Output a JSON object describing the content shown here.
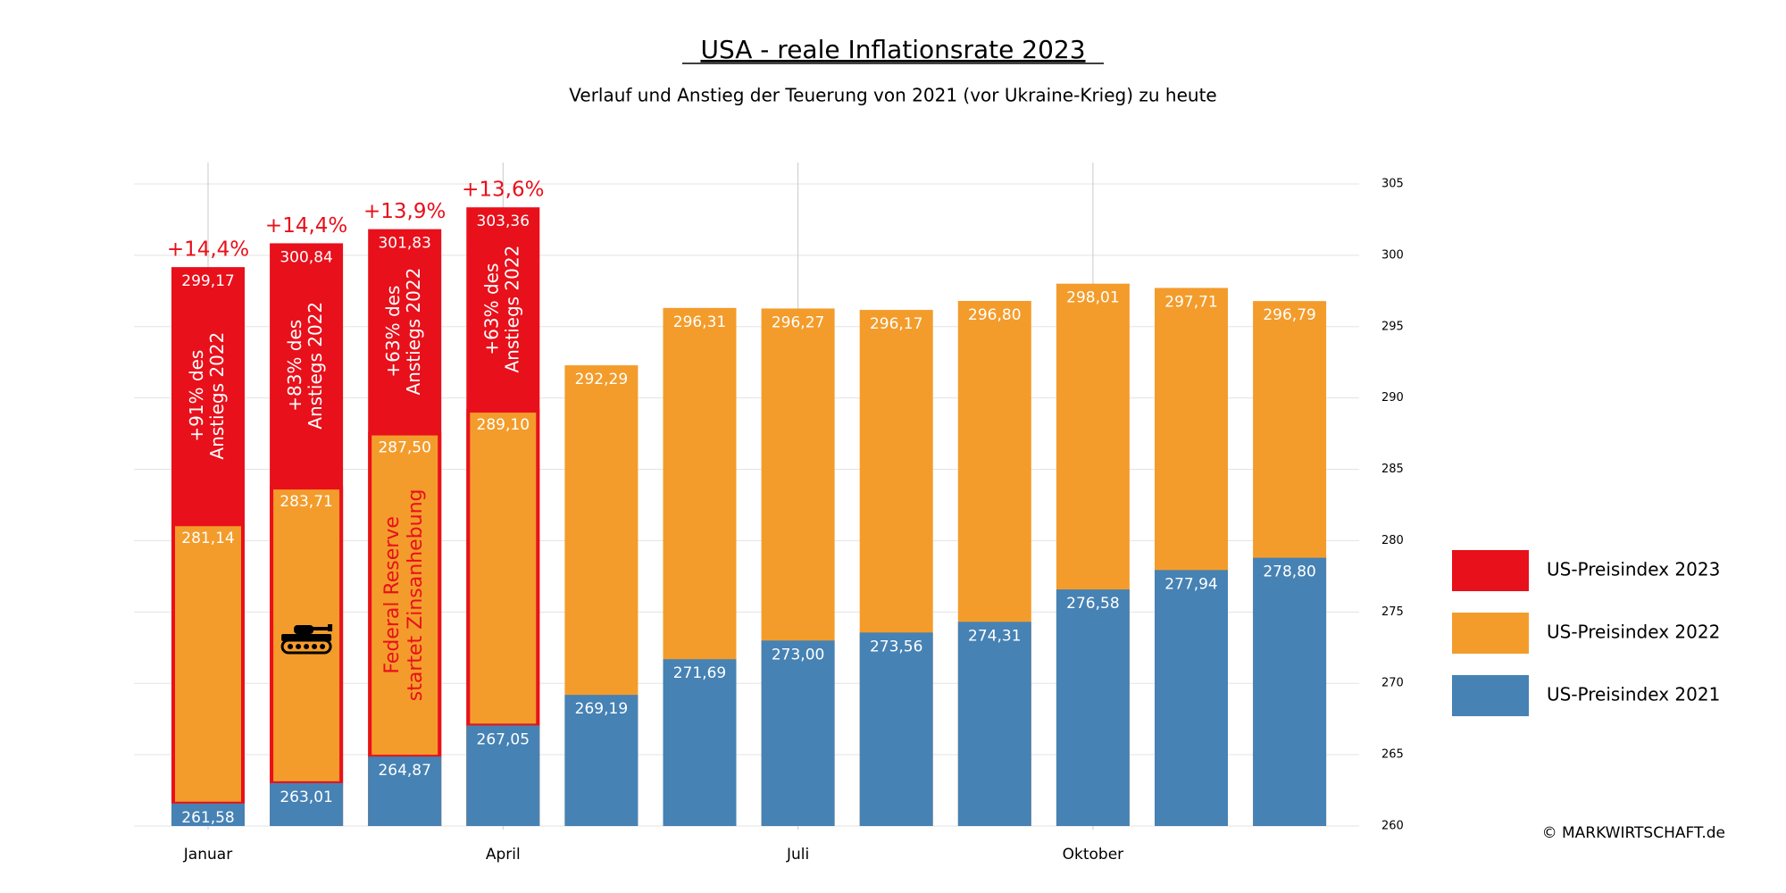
{
  "chart_data": {
    "type": "bar",
    "title": "USA - reale Inflationsrate 2023",
    "subtitle": "Verlauf und Anstieg der Teuerung von 2021 (vor Ukraine-Krieg) zu heute",
    "categories": [
      "Januar",
      null,
      null,
      "April",
      null,
      null,
      "Juli",
      null,
      null,
      "Oktober",
      null,
      null
    ],
    "series": [
      {
        "name": "US-Preisindex 2023",
        "color": "#e8101b",
        "values": [
          299.17,
          300.84,
          301.83,
          303.36,
          null,
          null,
          null,
          null,
          null,
          null,
          null,
          null
        ],
        "value_labels": [
          "299,17",
          "300,84",
          "301,83",
          "303,36",
          null,
          null,
          null,
          null,
          null,
          null,
          null,
          null
        ]
      },
      {
        "name": "US-Preisindex 2022",
        "color": "#f39c2b",
        "values": [
          281.14,
          283.71,
          287.5,
          289.1,
          292.29,
          296.31,
          296.27,
          296.17,
          296.8,
          298.01,
          297.71,
          296.79
        ],
        "value_labels": [
          "281,14",
          "283,71",
          "287,50",
          "289,10",
          "292,29",
          "296,31",
          "296,27",
          "296,17",
          "296,80",
          "298,01",
          "297,71",
          "296,79"
        ]
      },
      {
        "name": "US-Preisindex 2021",
        "color": "#4682b4",
        "values": [
          261.58,
          263.01,
          264.87,
          267.05,
          269.19,
          271.69,
          273.0,
          273.56,
          274.31,
          276.58,
          277.94,
          278.8
        ],
        "value_labels": [
          "261,58",
          "263,01",
          "264,87",
          "267,05",
          "269,19",
          "271,69",
          "273,00",
          "273,56",
          "274,31",
          "276,58",
          "277,94",
          "278,80"
        ]
      }
    ],
    "growth_labels": [
      "+14,4%",
      "+14,4%",
      "+13,9%",
      "+13,6%",
      null,
      null,
      null,
      null,
      null,
      null,
      null,
      null
    ],
    "share_labels": [
      [
        "+91% des",
        "Anstiegs 2022"
      ],
      [
        "+83% des",
        "Anstiegs 2022"
      ],
      [
        "+63% des",
        "Anstiegs 2022"
      ],
      [
        "+63% des",
        "Anstiegs 2022"
      ],
      null,
      null,
      null,
      null,
      null,
      null,
      null,
      null
    ],
    "notes": [
      null,
      null,
      [
        "Federal Reserve",
        "startet Zinsanhebung"
      ],
      null,
      null,
      null,
      null,
      null,
      null,
      null,
      null,
      null
    ],
    "highlight_color": "#e8101b",
    "ylim": [
      260,
      306.5
    ],
    "yticks": [
      260,
      265,
      270,
      275,
      280,
      285,
      290,
      295,
      300,
      305
    ],
    "grid": true,
    "legend": "right",
    "source": "© MARKWIRTSCHAFT.de"
  }
}
